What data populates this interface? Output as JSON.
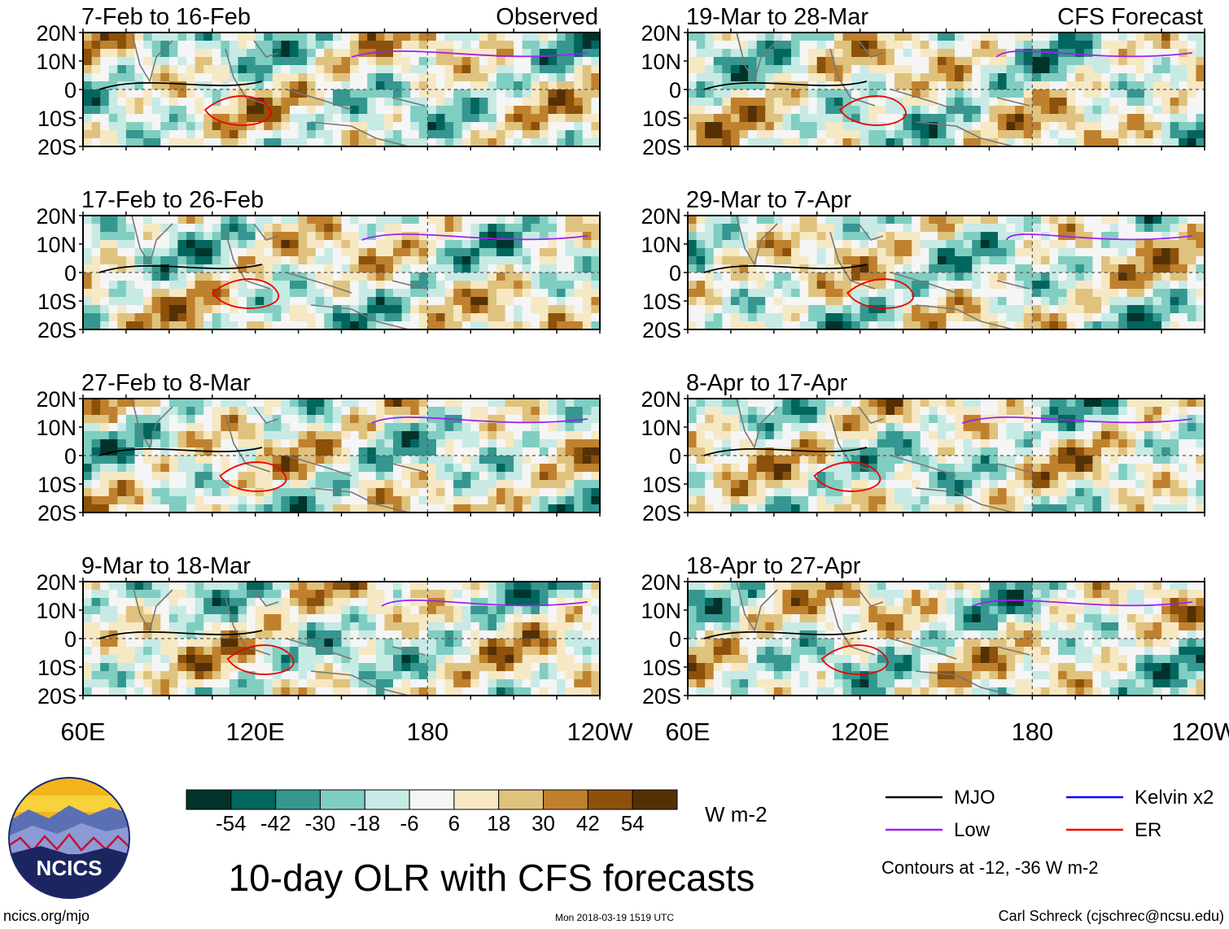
{
  "chart_data": {
    "type": "heatmap",
    "title": "10-day OLR with CFS forecasts",
    "units": "W m-2",
    "column_headers": [
      "Observed",
      "CFS Forecast"
    ],
    "y_tick_labels": [
      "20N",
      "10N",
      "0",
      "10S",
      "20S"
    ],
    "x_tick_labels": [
      "60E",
      "120E",
      "180",
      "120W"
    ],
    "x_range_lon_east": [
      60,
      240
    ],
    "y_range_lat": [
      -20,
      20
    ],
    "panels": [
      {
        "label": "7-Feb to 16-Feb",
        "column": "Observed"
      },
      {
        "label": "17-Feb to 26-Feb",
        "column": "Observed"
      },
      {
        "label": "27-Feb to 8-Mar",
        "column": "Observed"
      },
      {
        "label": "9-Mar to 18-Mar",
        "column": "Observed"
      },
      {
        "label": "19-Mar to 28-Mar",
        "column": "CFS Forecast"
      },
      {
        "label": "29-Mar to 7-Apr",
        "column": "CFS Forecast"
      },
      {
        "label": "8-Apr to 17-Apr",
        "column": "CFS Forecast"
      },
      {
        "label": "18-Apr to 27-Apr",
        "column": "CFS Forecast"
      }
    ],
    "colorbar": {
      "tick_labels": [
        "-54",
        "-42",
        "-30",
        "-18",
        "-6",
        "6",
        "18",
        "30",
        "42",
        "54"
      ],
      "colors": [
        "#01332b",
        "#01665e",
        "#35978f",
        "#80cdc1",
        "#c7eae5",
        "#f5f5f5",
        "#f6e8c3",
        "#dfc27d",
        "#bf812d",
        "#8c510a",
        "#543005"
      ]
    },
    "legend": [
      {
        "label": "MJO",
        "color": "#000000"
      },
      {
        "label": "Kelvin x2",
        "color": "#0000ff"
      },
      {
        "label": "Low",
        "color": "#a020f0"
      },
      {
        "label": "ER",
        "color": "#ee0000"
      }
    ],
    "contour_note": "Contours at -12, -36 W m-2"
  },
  "branding": {
    "logo_text": "NCICS",
    "website": "ncics.org/mjo",
    "timestamp": "Mon 2018-03-19 1519 UTC",
    "author": "Carl Schreck (cjschrec@ncsu.edu)"
  }
}
